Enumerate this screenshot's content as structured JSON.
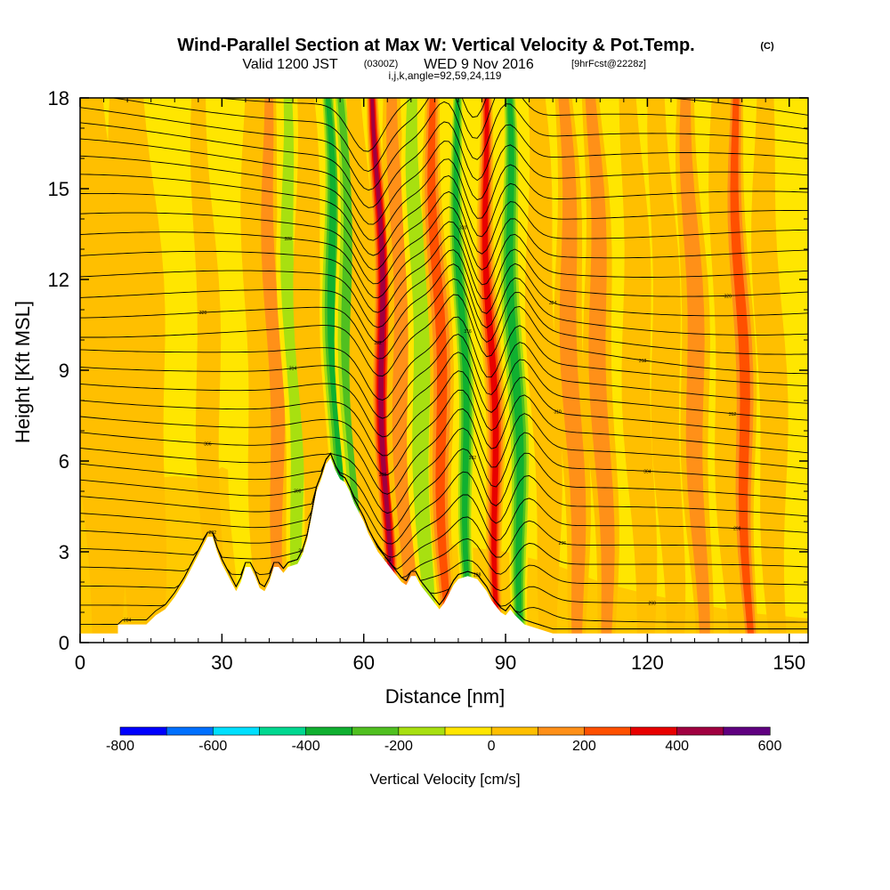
{
  "chart_data": {
    "type": "heatmap",
    "title": "Wind-Parallel Section at Max W: Vertical Velocity & Pot.Temp.",
    "title_mark": "(C)",
    "subtitle": {
      "valid_prefix": "Valid 1200 JST",
      "utc": "(0300Z)",
      "date": "WED 9 Nov 2016",
      "forecast": "[9hrFcst@2228z]",
      "params": "i,j,k,angle=92,59,24,119"
    },
    "xlabel": "Distance [nm]",
    "ylabel": "Height [Kft MSL]",
    "xlim": [
      0,
      154
    ],
    "ylim": [
      0,
      18
    ],
    "x_ticks": [
      0,
      30,
      60,
      90,
      120,
      150
    ],
    "y_ticks": [
      0,
      3,
      6,
      9,
      12,
      15,
      18
    ],
    "colorbar": {
      "label": "Vertical Velocity [cm/s]",
      "levels": [
        -800,
        -700,
        -600,
        -500,
        -400,
        -300,
        -200,
        -100,
        0,
        100,
        200,
        300,
        400,
        500,
        600
      ],
      "tick_labels": [
        "-800",
        "-600",
        "-400",
        "-200",
        "0",
        "200",
        "400",
        "600"
      ],
      "colors": [
        "#0000ff",
        "#0070ff",
        "#00e0ff",
        "#00d890",
        "#10b030",
        "#50c020",
        "#a8e010",
        "#ffe600",
        "#ffbf00",
        "#ff9018",
        "#ff5000",
        "#e80000",
        "#a00040",
        "#600080"
      ]
    },
    "background_level_color": "#ffe600",
    "vertical_velocity_bands": [
      {
        "x": 4,
        "w": 5,
        "v": 50
      },
      {
        "x": 12,
        "w": 6,
        "v": 50
      },
      {
        "x": 27,
        "w": 2.5,
        "v": 130
      },
      {
        "x": 34,
        "w": 3,
        "v": -120
      },
      {
        "x": 38,
        "w": 3,
        "v": 60
      },
      {
        "x": 41,
        "w": 2.5,
        "v": 220
      },
      {
        "x": 45,
        "w": 2.5,
        "v": -220
      },
      {
        "x": 49,
        "w": 3,
        "v": 80
      },
      {
        "x": 54,
        "w": 2.5,
        "v": -350
      },
      {
        "x": 57,
        "w": 2.5,
        "v": -300
      },
      {
        "x": 60,
        "w": 2.5,
        "v": 120
      },
      {
        "x": 64,
        "w": 2,
        "v": 520
      },
      {
        "x": 68,
        "w": 3,
        "v": 150
      },
      {
        "x": 72,
        "w": 3,
        "v": -150
      },
      {
        "x": 76,
        "w": 2.5,
        "v": 250
      },
      {
        "x": 81,
        "w": 2,
        "v": -420
      },
      {
        "x": 87,
        "w": 2,
        "v": 430
      },
      {
        "x": 92,
        "w": 2.5,
        "v": -350
      },
      {
        "x": 98,
        "w": 3,
        "v": 120
      },
      {
        "x": 104,
        "w": 3,
        "v": 200
      },
      {
        "x": 110,
        "w": 3,
        "v": 150
      },
      {
        "x": 118,
        "w": 3,
        "v": 120
      },
      {
        "x": 124,
        "w": 3,
        "v": 80
      },
      {
        "x": 130,
        "w": 3,
        "v": 150
      },
      {
        "x": 137,
        "w": 3,
        "v": 80
      },
      {
        "x": 140,
        "w": 2.5,
        "v": 250
      },
      {
        "x": 146,
        "w": 3,
        "v": 80
      }
    ],
    "terrain_profile": [
      [
        0,
        0.3
      ],
      [
        8,
        0.3
      ],
      [
        8,
        0.6
      ],
      [
        14,
        0.6
      ],
      [
        16,
        0.9
      ],
      [
        18,
        1.1
      ],
      [
        20,
        1.5
      ],
      [
        22,
        2.0
      ],
      [
        24,
        2.6
      ],
      [
        26,
        3.2
      ],
      [
        27,
        3.5
      ],
      [
        28,
        3.5
      ],
      [
        29,
        3.0
      ],
      [
        30,
        2.6
      ],
      [
        31,
        2.3
      ],
      [
        32,
        2.0
      ],
      [
        33,
        1.7
      ],
      [
        34,
        2.0
      ],
      [
        35,
        2.5
      ],
      [
        36,
        2.5
      ],
      [
        37,
        2.2
      ],
      [
        38,
        1.8
      ],
      [
        39,
        1.7
      ],
      [
        40,
        2.0
      ],
      [
        41,
        2.5
      ],
      [
        42,
        2.5
      ],
      [
        43,
        2.3
      ],
      [
        44,
        2.5
      ],
      [
        46,
        2.6
      ],
      [
        47,
        2.9
      ],
      [
        48,
        3.4
      ],
      [
        49,
        4.2
      ],
      [
        50,
        5.0
      ],
      [
        51,
        5.4
      ],
      [
        52,
        5.9
      ],
      [
        53,
        6.1
      ],
      [
        54,
        5.7
      ],
      [
        55,
        5.4
      ],
      [
        56,
        5.3
      ],
      [
        57,
        5.0
      ],
      [
        58,
        4.6
      ],
      [
        59,
        4.3
      ],
      [
        60,
        4.0
      ],
      [
        61,
        3.6
      ],
      [
        62,
        3.3
      ],
      [
        63,
        3.0
      ],
      [
        64,
        2.8
      ],
      [
        65,
        2.6
      ],
      [
        66,
        2.4
      ],
      [
        67,
        2.2
      ],
      [
        68,
        2.0
      ],
      [
        69,
        1.9
      ],
      [
        70,
        2.2
      ],
      [
        71,
        2.2
      ],
      [
        72,
        1.9
      ],
      [
        73,
        1.7
      ],
      [
        74,
        1.5
      ],
      [
        75,
        1.3
      ],
      [
        76,
        1.1
      ],
      [
        77,
        1.3
      ],
      [
        78,
        1.6
      ],
      [
        79,
        1.9
      ],
      [
        80,
        2.1
      ],
      [
        82,
        2.2
      ],
      [
        84,
        2.1
      ],
      [
        86,
        1.7
      ],
      [
        87,
        1.4
      ],
      [
        88,
        1.2
      ],
      [
        89,
        1.0
      ],
      [
        90,
        0.9
      ],
      [
        91,
        1.1
      ],
      [
        92,
        0.9
      ],
      [
        94,
        0.6
      ],
      [
        96,
        0.5
      ],
      [
        98,
        0.4
      ],
      [
        100,
        0.3
      ],
      [
        154,
        0.3
      ]
    ],
    "theta_isentropes": {
      "count": 32,
      "labels": [
        "284",
        "286",
        "288",
        "290",
        "292",
        "294",
        "296",
        "298",
        "300",
        "302",
        "304",
        "306",
        "308",
        "310",
        "312",
        "314",
        "316",
        "318",
        "320",
        "322",
        "324",
        "326",
        "328",
        "330"
      ]
    }
  }
}
